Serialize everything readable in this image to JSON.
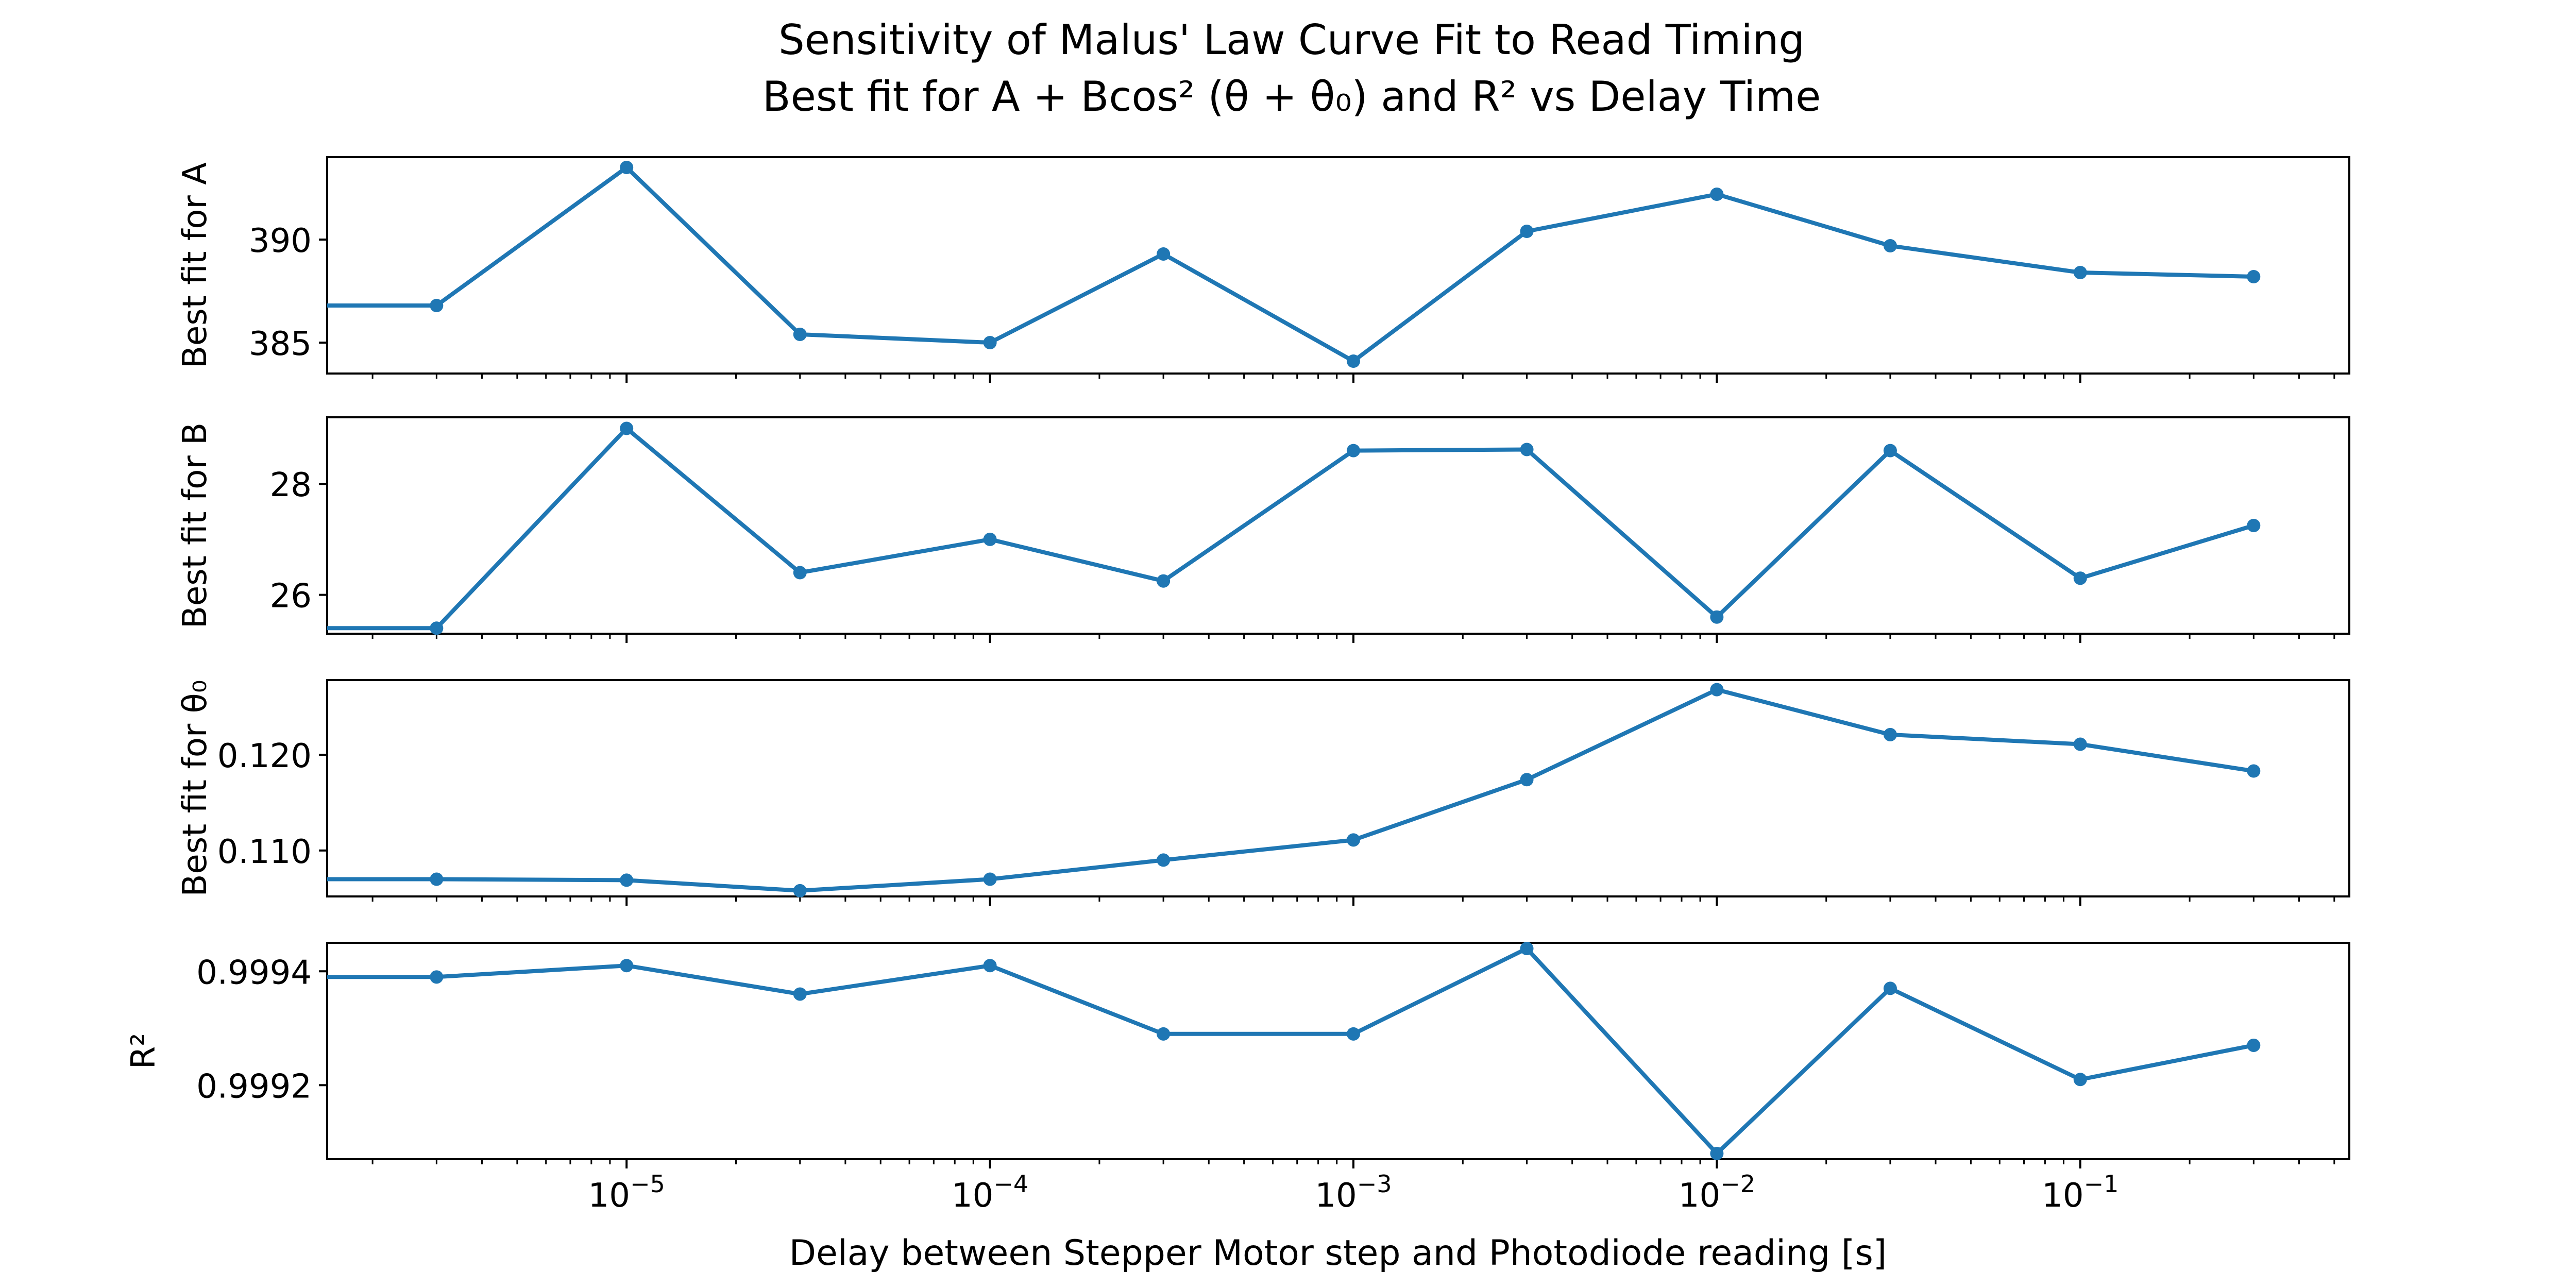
{
  "title": {
    "line1": "Sensitivity of Malus' Law Curve Fit to Read Timing",
    "line2": "Best fit for A + Bcos² (θ + θ₀) and R² vs Delay Time"
  },
  "xlabel": "Delay between Stepper Motor step and Photodiode reading [s]",
  "colors": {
    "series": "#1f77b4"
  },
  "chart_data": [
    {
      "type": "line",
      "ylabel": "Best fit for A",
      "x": [
        3e-06,
        1e-05,
        3e-05,
        0.0001,
        0.0003,
        0.001,
        0.003,
        0.01,
        0.03,
        0.1,
        0.3
      ],
      "values": [
        386.8,
        393.5,
        385.4,
        385.0,
        389.3,
        384.1,
        390.4,
        392.2,
        389.7,
        388.4,
        388.2
      ],
      "lead_in_value": 386.8,
      "xscale": "log",
      "xlim": [
        1.5e-06,
        0.55
      ],
      "ylim": [
        383.5,
        394.0
      ],
      "yticks": [
        385,
        390
      ],
      "yticklabels": [
        "385",
        "390"
      ]
    },
    {
      "type": "line",
      "ylabel": "Best fit for B",
      "x": [
        3e-06,
        1e-05,
        3e-05,
        0.0001,
        0.0003,
        0.001,
        0.003,
        0.01,
        0.03,
        0.1,
        0.3
      ],
      "values": [
        25.4,
        29.0,
        26.4,
        27.0,
        26.25,
        28.6,
        28.62,
        25.6,
        28.6,
        26.3,
        27.25
      ],
      "lead_in_value": 25.4,
      "xscale": "log",
      "xlim": [
        1.5e-06,
        0.55
      ],
      "ylim": [
        25.3,
        29.2
      ],
      "yticks": [
        26,
        28
      ],
      "yticklabels": [
        "26",
        "28"
      ]
    },
    {
      "type": "line",
      "ylabel": "Best fit for θ₀",
      "x": [
        3e-06,
        1e-05,
        3e-05,
        0.0001,
        0.0003,
        0.001,
        0.003,
        0.01,
        0.03,
        0.1,
        0.3
      ],
      "values": [
        0.107,
        0.1069,
        0.1058,
        0.107,
        0.109,
        0.1111,
        0.1174,
        0.1268,
        0.1221,
        0.1211,
        0.1183
      ],
      "lead_in_value": 0.107,
      "xscale": "log",
      "xlim": [
        1.5e-06,
        0.55
      ],
      "ylim": [
        0.1052,
        0.1278
      ],
      "yticks": [
        0.11,
        0.12
      ],
      "yticklabels": [
        "0.110",
        "0.120"
      ]
    },
    {
      "type": "line",
      "ylabel": "R²",
      "x": [
        3e-06,
        1e-05,
        3e-05,
        0.0001,
        0.0003,
        0.001,
        0.003,
        0.01,
        0.03,
        0.1,
        0.3
      ],
      "values": [
        0.99939,
        0.99941,
        0.99936,
        0.99941,
        0.99929,
        0.99929,
        0.99944,
        0.99908,
        0.99937,
        0.99921,
        0.99927
      ],
      "lead_in_value": 0.99939,
      "xscale": "log",
      "xlim": [
        1.5e-06,
        0.55
      ],
      "ylim": [
        0.99907,
        0.99945
      ],
      "yticks": [
        0.9992,
        0.9994
      ],
      "yticklabels": [
        "0.9992",
        "0.9994"
      ]
    }
  ],
  "xaxis": {
    "ticks": [
      1e-05,
      0.0001,
      0.001,
      0.01,
      0.1
    ],
    "ticklabel_base": "10",
    "ticklabel_exponents": [
      "−5",
      "−4",
      "−3",
      "−2",
      "−1"
    ]
  }
}
